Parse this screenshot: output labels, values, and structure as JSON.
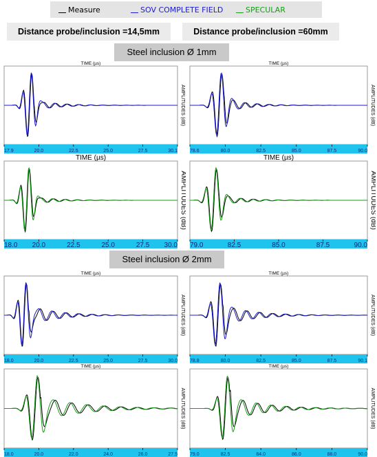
{
  "legend": {
    "measure": {
      "label": "Measure",
      "color": "#000000"
    },
    "sov": {
      "label": "SOV COMPLETE FIELD",
      "color": "#1a1ad0"
    },
    "specular": {
      "label": "SPECULAR",
      "color": "#12a012"
    }
  },
  "headers": {
    "left": "Distance probe/inclusion =14,5mm",
    "right": "Distance probe/inclusion =60mm"
  },
  "sections": [
    "Steel inclusion Ø 1mm",
    "Steel inclusion Ø 2mm"
  ],
  "axis_titles": {
    "x": "TIME (µs)",
    "y": "AMPLITUDES (dB)"
  },
  "colors": {
    "axis_band": "#1ec3ee",
    "measure": "#000000",
    "sov": "#1a1ad0",
    "specular": "#12a012"
  },
  "chart_data": [
    {
      "id": "p1",
      "type": "line",
      "section": "Steel inclusion Ø 1mm",
      "distance": "14,5mm",
      "model": "SOV COMPLETE FIELD",
      "xlabel": "TIME (µs)",
      "ylabel": "AMPLITUDES (dB)",
      "xlim": [
        17.9,
        30.1
      ],
      "x_ticks": [
        "17.9",
        "20.0",
        "22.5",
        "25.0",
        "27.5",
        "30.1"
      ],
      "series": [
        {
          "name": "Measure",
          "color": "#000000"
        },
        {
          "name": "SOV COMPLETE FIELD",
          "color": "#1a1ad0"
        }
      ],
      "signal": {
        "center": 19.7,
        "freq": 1.6,
        "decay": 1.6,
        "tail_amp": 0.15,
        "tail_freq": 1.2
      }
    },
    {
      "id": "p2",
      "type": "line",
      "section": "Steel inclusion Ø 1mm",
      "distance": "60mm",
      "model": "SOV COMPLETE FIELD",
      "xlabel": "TIME (µs)",
      "ylabel": "AMPLITUDES (dB)",
      "xlim": [
        78.6,
        90.0
      ],
      "x_ticks": [
        "78.6",
        "80.0",
        "82.5",
        "85.0",
        "87.5",
        "90.0"
      ],
      "series": [
        {
          "name": "Measure",
          "color": "#000000"
        },
        {
          "name": "SOV COMPLETE FIELD",
          "color": "#1a1ad0"
        }
      ],
      "signal": {
        "center": 80.5,
        "freq": 1.5,
        "decay": 1.4,
        "tail_amp": 0.2,
        "tail_freq": 1.3
      }
    },
    {
      "id": "p3",
      "type": "line",
      "section": "Steel inclusion Ø 1mm",
      "distance": "14,5mm",
      "model": "SPECULAR",
      "xlabel": "TIME (µs)",
      "ylabel": "AMPLITUDES (dB)",
      "xlim": [
        18.0,
        30.0
      ],
      "x_ticks": [
        "18.0",
        "20.0",
        "22.5",
        "25.0",
        "27.5",
        "30.0"
      ],
      "series": [
        {
          "name": "Measure",
          "color": "#000000"
        },
        {
          "name": "SPECULAR",
          "color": "#12a012"
        }
      ],
      "signal": {
        "center": 19.6,
        "freq": 1.6,
        "decay": 1.5,
        "tail_amp": 0.12,
        "tail_freq": 1.2
      }
    },
    {
      "id": "p4",
      "type": "line",
      "section": "Steel inclusion Ø 1mm",
      "distance": "60mm",
      "model": "SPECULAR",
      "xlabel": "TIME (µs)",
      "ylabel": "AMPLITUDES (dB)",
      "xlim": [
        79.0,
        90.0
      ],
      "x_ticks": [
        "79.0",
        "82.5",
        "85.0",
        "87.5",
        "90.0"
      ],
      "series": [
        {
          "name": "Measure",
          "color": "#000000"
        },
        {
          "name": "SPECULAR",
          "color": "#12a012"
        }
      ],
      "signal": {
        "center": 80.5,
        "freq": 1.5,
        "decay": 1.4,
        "tail_amp": 0.15,
        "tail_freq": 1.3
      }
    },
    {
      "id": "p5",
      "type": "line",
      "section": "Steel inclusion Ø 2mm",
      "distance": "14,5mm",
      "model": "SOV COMPLETE FIELD",
      "xlabel": "TIME (µs)",
      "ylabel": "AMPLITUDES (dB)",
      "xlim": [
        18.0,
        30.0
      ],
      "x_ticks": [
        "18.0",
        "20.0",
        "22.5",
        "25.0",
        "27.5",
        "30.0"
      ],
      "series": [
        {
          "name": "Measure",
          "color": "#000000"
        },
        {
          "name": "SOV COMPLETE FIELD",
          "color": "#1a1ad0"
        }
      ],
      "signal": {
        "center": 19.4,
        "freq": 1.6,
        "decay": 1.8,
        "tail_amp": 0.3,
        "tail_freq": 1.1
      }
    },
    {
      "id": "p6",
      "type": "line",
      "section": "Steel inclusion Ø 2mm",
      "distance": "60mm",
      "model": "SOV COMPLETE FIELD",
      "xlabel": "TIME (µs)",
      "ylabel": "AMPLITUDES (dB)",
      "xlim": [
        78.8,
        90.1
      ],
      "x_ticks": [
        "78.8",
        "80.0",
        "82.5",
        "85.0",
        "87.5",
        "90.1"
      ],
      "series": [
        {
          "name": "Measure",
          "color": "#000000"
        },
        {
          "name": "SOV COMPLETE FIELD",
          "color": "#1a1ad0"
        }
      ],
      "signal": {
        "center": 80.6,
        "freq": 1.5,
        "decay": 1.8,
        "tail_amp": 0.3,
        "tail_freq": 1.2
      }
    },
    {
      "id": "p7",
      "type": "line",
      "section": "Steel inclusion Ø 2mm",
      "distance": "14,5mm",
      "model": "SPECULAR",
      "xlabel": "TIME (µs)",
      "ylabel": "AMPLITUDES (dB)",
      "xlim": [
        18.0,
        27.5
      ],
      "x_ticks": [
        "18.0",
        "20.0",
        "22.0",
        "24.0",
        "26.0",
        "27.5"
      ],
      "series": [
        {
          "name": "Measure",
          "color": "#000000"
        },
        {
          "name": "SPECULAR",
          "color": "#12a012"
        }
      ],
      "signal": {
        "center": 19.7,
        "freq": 1.5,
        "decay": 2.2,
        "tail_amp": 0.35,
        "tail_freq": 1.1
      }
    },
    {
      "id": "p8",
      "type": "line",
      "section": "Steel inclusion Ø 2mm",
      "distance": "60mm",
      "model": "SPECULAR",
      "xlabel": "TIME (µs)",
      "ylabel": "AMPLITUDES (dB)",
      "xlim": [
        79.0,
        90.0
      ],
      "x_ticks": [
        "79.0",
        "82.5",
        "84.0",
        "86.0",
        "88.0",
        "90.0"
      ],
      "series": [
        {
          "name": "Measure",
          "color": "#000000"
        },
        {
          "name": "SPECULAR",
          "color": "#12a012"
        }
      ],
      "signal": {
        "center": 81.2,
        "freq": 1.4,
        "decay": 2.0,
        "tail_amp": 0.35,
        "tail_freq": 1.1
      }
    }
  ]
}
